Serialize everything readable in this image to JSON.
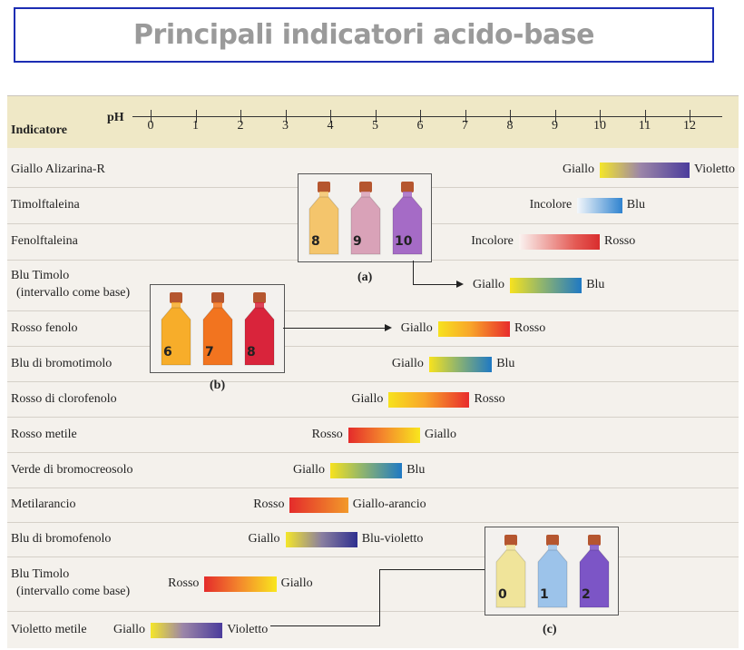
{
  "title": "Principali indicatori acido-base",
  "table": {
    "header_label": "Indicatore",
    "axis_label": "pH",
    "ticks": [
      "0",
      "1",
      "2",
      "3",
      "4",
      "5",
      "6",
      "7",
      "8",
      "9",
      "10",
      "11",
      "12"
    ],
    "rows": [
      {
        "name": "Giallo Alizarina-R",
        "low_color": "Giallo",
        "high_color": "Violetto",
        "ph_low": 10,
        "ph_high": 12
      },
      {
        "name": "Timolftaleina",
        "low_color": "Incolore",
        "high_color": "Blu",
        "ph_low": 9.5,
        "ph_high": 10.5
      },
      {
        "name": "Fenolftaleina",
        "low_color": "Incolore",
        "high_color": "Rosso",
        "ph_low": 8.2,
        "ph_high": 10
      },
      {
        "name": "Blu Timolo",
        "name2": "(intervallo come base)",
        "low_color": "Giallo",
        "high_color": "Blu",
        "ph_low": 8,
        "ph_high": 9.6
      },
      {
        "name": "Rosso fenolo",
        "low_color": "Giallo",
        "high_color": "Rosso",
        "ph_low": 6.4,
        "ph_high": 8
      },
      {
        "name": "Blu di bromotimolo",
        "low_color": "Giallo",
        "high_color": "Blu",
        "ph_low": 6.2,
        "ph_high": 7.6
      },
      {
        "name": "Rosso di clorofenolo",
        "low_color": "Giallo",
        "high_color": "Rosso",
        "ph_low": 5.3,
        "ph_high": 7.1
      },
      {
        "name": "Rosso metile",
        "low_color": "Rosso",
        "high_color": "Giallo",
        "ph_low": 4.4,
        "ph_high": 6.0
      },
      {
        "name": "Verde di bromocreosolo",
        "low_color": "Giallo",
        "high_color": "Blu",
        "ph_low": 4.0,
        "ph_high": 5.6
      },
      {
        "name": "Metilarancio",
        "low_color": "Rosso",
        "high_color": "Giallo-arancio",
        "ph_low": 3.1,
        "ph_high": 4.4
      },
      {
        "name": "Blu di bromofenolo",
        "low_color": "Giallo",
        "high_color": "Blu-violetto",
        "ph_low": 3.0,
        "ph_high": 4.6
      },
      {
        "name": "Blu Timolo",
        "name2": "(intervallo come base)",
        "low_color": "Rosso",
        "high_color": "Giallo",
        "ph_low": 1.2,
        "ph_high": 2.8
      },
      {
        "name": "Violetto metile",
        "low_color": "Giallo",
        "high_color": "Violetto",
        "ph_low": 0,
        "ph_high": 1.6
      }
    ]
  },
  "photos": [
    {
      "caption": "(a)",
      "labels": [
        "8",
        "9",
        "10"
      ]
    },
    {
      "caption": "(b)",
      "labels": [
        "6",
        "7",
        "8"
      ]
    },
    {
      "caption": "(c)",
      "labels": [
        "0",
        "1",
        "2"
      ]
    }
  ],
  "colors": {
    "title_border": "#1c2db3",
    "header_bg": "#efe8c6",
    "panel_bg": "#f4f1ec"
  }
}
